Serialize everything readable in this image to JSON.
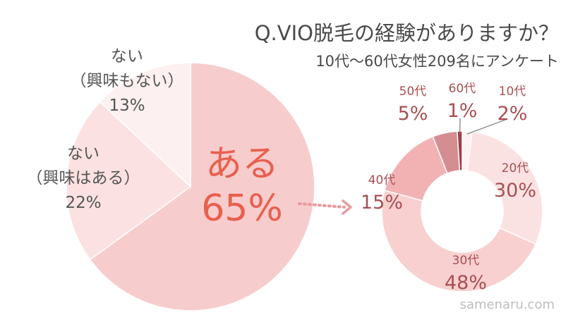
{
  "title": "Q.VIO脱毛の経験がありますか？",
  "subtitle": "10代〜60代女性209名にアンケート",
  "watermark": "samenaru.com",
  "colors": {
    "title": "#4a4a4a",
    "pie_label": "#555555",
    "highlight": "#e8604d",
    "donut_label": "#a84f52",
    "arrow": "#e89aa0"
  },
  "chart_data": [
    {
      "type": "pie",
      "title": "",
      "slices": [
        {
          "label": "ある",
          "value": 65,
          "value_label": "65%",
          "color": "#f7cccd"
        },
        {
          "label": "ない\n（興味はある）",
          "value": 22,
          "value_label": "22%",
          "color": "#fbe1e1"
        },
        {
          "label": "ない\n（興味もない）",
          "value": 13,
          "value_label": "13%",
          "color": "#fdf0f0"
        }
      ]
    },
    {
      "type": "pie",
      "subtype": "donut",
      "title": "",
      "slices": [
        {
          "label": "10代",
          "value": 2,
          "value_label": "2%",
          "color": "#fdf1f1"
        },
        {
          "label": "20代",
          "value": 30,
          "value_label": "30%",
          "color": "#fbe2e2"
        },
        {
          "label": "30代",
          "value": 48,
          "value_label": "48%",
          "color": "#f8d0d0"
        },
        {
          "label": "40代",
          "value": 15,
          "value_label": "15%",
          "color": "#f2b2b4"
        },
        {
          "label": "50代",
          "value": 5,
          "value_label": "5%",
          "color": "#d48e91"
        },
        {
          "label": "60代",
          "value": 1,
          "value_label": "1%",
          "color": "#9c3f46"
        }
      ]
    }
  ]
}
